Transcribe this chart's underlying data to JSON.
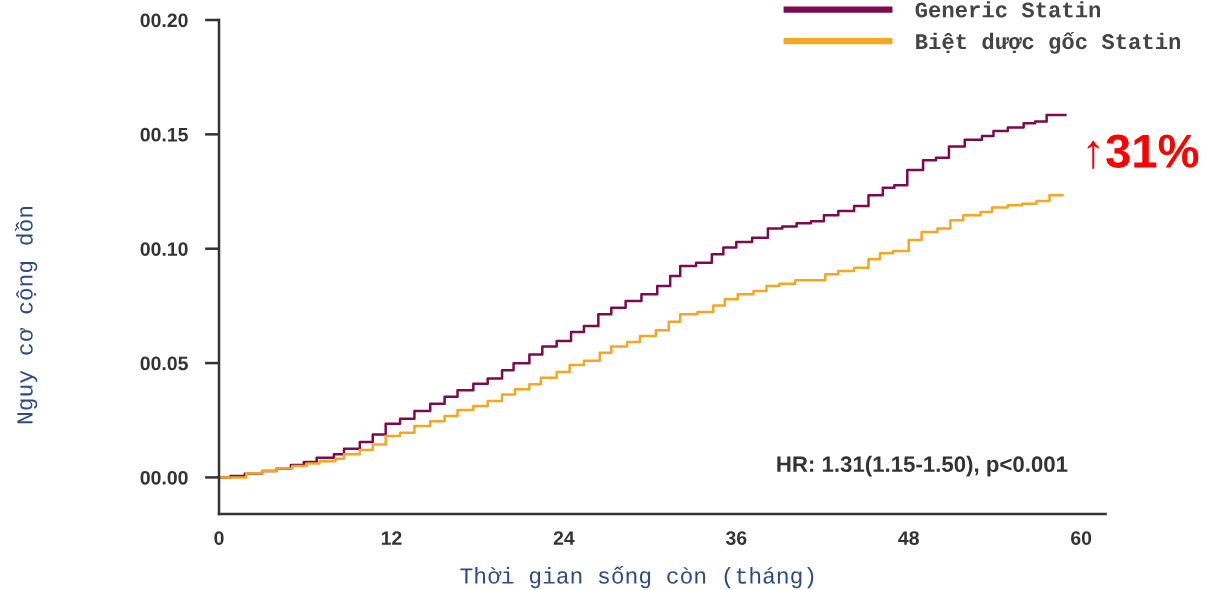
{
  "chart_data": {
    "type": "step",
    "xlabel": "Thời gian sống còn (tháng)",
    "ylabel": "Nguy cơ cộng dồn",
    "annotations": [
      "↑31%",
      "HR: 1.31(1.15-1.50), p<0.001"
    ],
    "series": [
      {
        "name": "Generic Statin",
        "color": "#7b0a4f",
        "x": [
          0,
          0.8,
          1.8,
          3.0,
          4.0,
          5.0,
          5.9,
          6.8,
          8.0,
          8.7,
          9.8,
          10.7,
          11.6,
          12.6,
          13.6,
          14.7,
          15.7,
          16.6,
          17.7,
          18.7,
          19.7,
          20.5,
          21.6,
          22.5,
          23.5,
          24.5,
          25.4,
          26.4,
          27.3,
          28.3,
          29.4,
          30.5,
          31.4,
          32.1,
          33.2,
          34.3,
          35.1,
          36.0,
          37.1,
          38.2,
          39.2,
          40.2,
          41.2,
          42.1,
          43.1,
          44.2,
          45.2,
          46.2,
          47.0,
          47.9,
          49.0,
          49.9,
          50.8,
          51.9,
          53.1,
          53.9,
          54.9,
          56.0,
          56.8,
          57.6,
          58.9
        ],
        "values": [
          0,
          0.0006,
          0.0016,
          0.0028,
          0.0038,
          0.0054,
          0.0067,
          0.0086,
          0.0101,
          0.0125,
          0.0155,
          0.0188,
          0.0235,
          0.0257,
          0.029,
          0.0322,
          0.0353,
          0.0381,
          0.041,
          0.0432,
          0.0469,
          0.0499,
          0.0537,
          0.0572,
          0.0596,
          0.0636,
          0.0662,
          0.0713,
          0.0742,
          0.0771,
          0.0801,
          0.0837,
          0.0881,
          0.0924,
          0.0939,
          0.0976,
          0.1005,
          0.1029,
          0.1048,
          0.1088,
          0.1097,
          0.1111,
          0.112,
          0.1146,
          0.1165,
          0.1187,
          0.1234,
          0.1267,
          0.1277,
          0.1344,
          0.1387,
          0.1398,
          0.1447,
          0.1476,
          0.1493,
          0.1515,
          0.153,
          0.1549,
          0.1556,
          0.1585,
          0.1585
        ]
      },
      {
        "name": "Biệt dược gốc Statin",
        "color": "#f5a623",
        "x": [
          0,
          1.9,
          3.0,
          4.0,
          5.1,
          6.1,
          7.0,
          8.1,
          8.7,
          9.8,
          10.7,
          11.6,
          12.6,
          13.6,
          14.7,
          15.7,
          16.6,
          17.7,
          18.7,
          19.7,
          20.6,
          21.6,
          22.4,
          23.5,
          24.4,
          25.4,
          26.5,
          27.3,
          28.4,
          29.3,
          30.4,
          31.3,
          32.1,
          33.3,
          34.4,
          35.2,
          36.1,
          37.2,
          38.1,
          39.0,
          40.1,
          42.2,
          43.1,
          44.2,
          45.2,
          46.0,
          46.9,
          48.0,
          48.9,
          50.0,
          50.9,
          51.8,
          53.0,
          53.8,
          54.9,
          55.9,
          56.9,
          57.8,
          58.7
        ],
        "values": [
          0,
          0.0017,
          0.0028,
          0.0039,
          0.005,
          0.0061,
          0.0071,
          0.0082,
          0.0101,
          0.012,
          0.0144,
          0.0181,
          0.0195,
          0.0225,
          0.0246,
          0.0268,
          0.0295,
          0.0312,
          0.0334,
          0.0363,
          0.0385,
          0.0407,
          0.0436,
          0.0461,
          0.0491,
          0.051,
          0.0545,
          0.0572,
          0.0592,
          0.0618,
          0.0644,
          0.0681,
          0.0713,
          0.0723,
          0.0752,
          0.0779,
          0.0801,
          0.0815,
          0.0837,
          0.0847,
          0.0862,
          0.0888,
          0.0902,
          0.0917,
          0.0954,
          0.098,
          0.099,
          0.1038,
          0.1073,
          0.1088,
          0.1124,
          0.1146,
          0.1161,
          0.118,
          0.119,
          0.1197,
          0.1209,
          0.1234,
          0.1234
        ]
      }
    ],
    "xlim": [
      0,
      61.7
    ],
    "ylim": [
      -0.016,
      0.2
    ],
    "xticks": [
      0,
      12,
      24,
      36,
      48,
      60
    ],
    "yticks": [
      {
        "value": 0,
        "label": "00.00"
      },
      {
        "value": 0.05,
        "label": "00.05"
      },
      {
        "value": 0.1,
        "label": "00.10"
      },
      {
        "value": 0.15,
        "label": "00.15"
      },
      {
        "value": 0.2,
        "label": "00.20"
      }
    ],
    "legend": "top right",
    "grid": false,
    "line_style": "solid",
    "marker": "none"
  }
}
